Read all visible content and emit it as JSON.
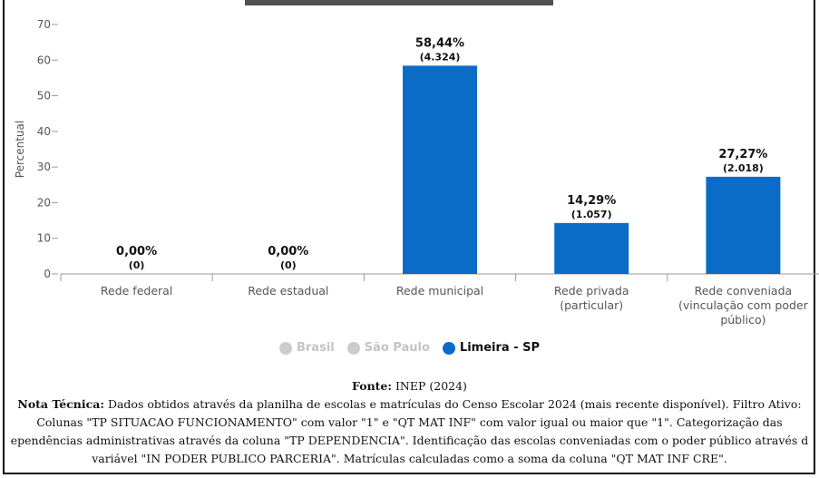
{
  "chart_data": {
    "type": "bar",
    "ylabel": "Percentual",
    "ylim": [
      0,
      70
    ],
    "yticks": [
      0,
      10,
      20,
      30,
      40,
      50,
      60,
      70
    ],
    "categories": [
      [
        "Rede federal"
      ],
      [
        "Rede estadual"
      ],
      [
        "Rede municipal"
      ],
      [
        "Rede privada",
        "(particular)"
      ],
      [
        "Rede conveniada",
        "(vinculação com poder",
        "público)"
      ]
    ],
    "series": [
      {
        "name": "Limeira - SP",
        "color": "#0a6cc6",
        "values": [
          0.0,
          0.0,
          58.44,
          14.29,
          27.27
        ],
        "labels": [
          "0,00%",
          "0,00%",
          "58,44%",
          "14,29%",
          "27,27%"
        ],
        "counts": [
          "(0)",
          "(0)",
          "(4.324)",
          "(1.057)",
          "(2.018)"
        ]
      }
    ],
    "legend": [
      {
        "name": "Brasil",
        "color": "#cccccc",
        "active": false
      },
      {
        "name": "São Paulo",
        "color": "#cccccc",
        "active": false
      },
      {
        "name": "Limeira - SP",
        "color": "#0a6cc6",
        "active": true
      }
    ],
    "grid": false
  },
  "footer": {
    "fonte_label": "Fonte:",
    "fonte_value": " INEP (2024)",
    "nota_label": "Nota Técnica:",
    "nota_line1": " Dados obtidos através da planilha de escolas e matrículas do Censo Escolar 2024 (mais recente disponível). Filtro Ativo:",
    "nota_line2": "Colunas \"TP SITUACAO FUNCIONAMENTO\" com valor \"1\" e \"QT MAT INF\" com valor igual ou maior que \"1\". Categorização das",
    "nota_line3": "ependências administrativas através da coluna \"TP DEPENDENCIA\". Identificação das escolas conveniadas com o poder público através d",
    "nota_line4": "variável \"IN PODER PUBLICO PARCERIA\". Matrículas calculadas como a soma da coluna \"QT MAT INF CRE\"."
  }
}
